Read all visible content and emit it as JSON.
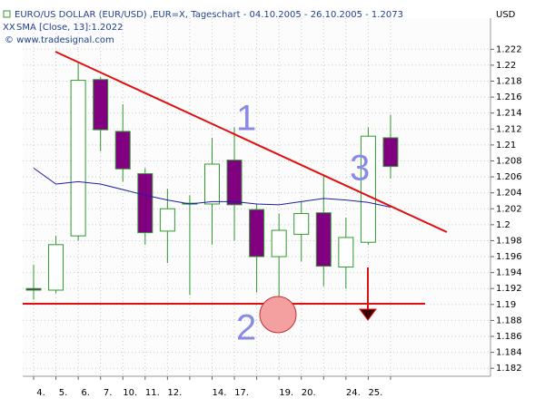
{
  "chart_data": {
    "type": "candlestick",
    "title": "EURO/US DOLLAR (EUR/USD) ,EUR=X, Tageschart - 04.10.2005 - 26.10.2005 - 1.2073",
    "source": "© www.tradesignal.com",
    "ylabel": "USD",
    "categories": [
      "4.",
      "5.",
      "6.",
      "7.",
      "10.",
      "11.",
      "12.",
      null,
      "14.",
      "17.",
      null,
      "19.",
      "20.",
      null,
      "24.",
      "25.",
      null
    ],
    "open": [
      1.192,
      1.1918,
      1.1986,
      1.2182,
      1.2117,
      1.2064,
      1.1992,
      1.2027,
      1.2026,
      1.2081,
      1.2019,
      1.196,
      1.1988,
      1.2015,
      1.1947,
      1.1978,
      1.2109
    ],
    "high": [
      1.195,
      1.1986,
      1.2204,
      1.2185,
      1.2151,
      1.2071,
      1.2045,
      1.2037,
      1.2109,
      1.2122,
      1.2026,
      1.2014,
      1.2029,
      1.2062,
      1.2009,
      1.2122,
      1.2138
    ],
    "low": [
      1.1906,
      1.1914,
      1.198,
      1.2092,
      1.2054,
      1.1975,
      1.1952,
      1.1912,
      1.1975,
      1.198,
      1.1915,
      1.1893,
      1.1954,
      1.1923,
      1.192,
      1.1975,
      1.2058
    ],
    "close": [
      1.1918,
      1.1975,
      1.2181,
      1.2119,
      1.207,
      1.199,
      1.202,
      1.2027,
      1.2076,
      1.2025,
      1.196,
      1.1993,
      1.2014,
      1.1948,
      1.1984,
      1.2111,
      1.2073
    ],
    "up_color": "#ffffff",
    "down_color": "#800080",
    "edge_color": "#2e9a2e",
    "series": [
      {
        "name": "SMA [Close, 13]:1.2022",
        "color": "#1c1ca8",
        "values": [
          1.2071,
          1.2051,
          1.2054,
          1.2051,
          1.2044,
          1.2037,
          1.2031,
          1.2026,
          1.2029,
          1.2029,
          1.2026,
          1.2025,
          1.2029,
          1.2033,
          1.2031,
          1.2028,
          1.2022
        ]
      }
    ],
    "annotations": [
      "1",
      "2",
      "3"
    ],
    "ylim": [
      1.181,
      1.2259
    ],
    "yticks": [
      1.182,
      1.184,
      1.186,
      1.188,
      1.19,
      1.192,
      1.194,
      1.196,
      1.198,
      1.2,
      1.202,
      1.204,
      1.206,
      1.208,
      1.21,
      1.212,
      1.214,
      1.216,
      1.218,
      1.22,
      1.222
    ],
    "grid": true
  }
}
